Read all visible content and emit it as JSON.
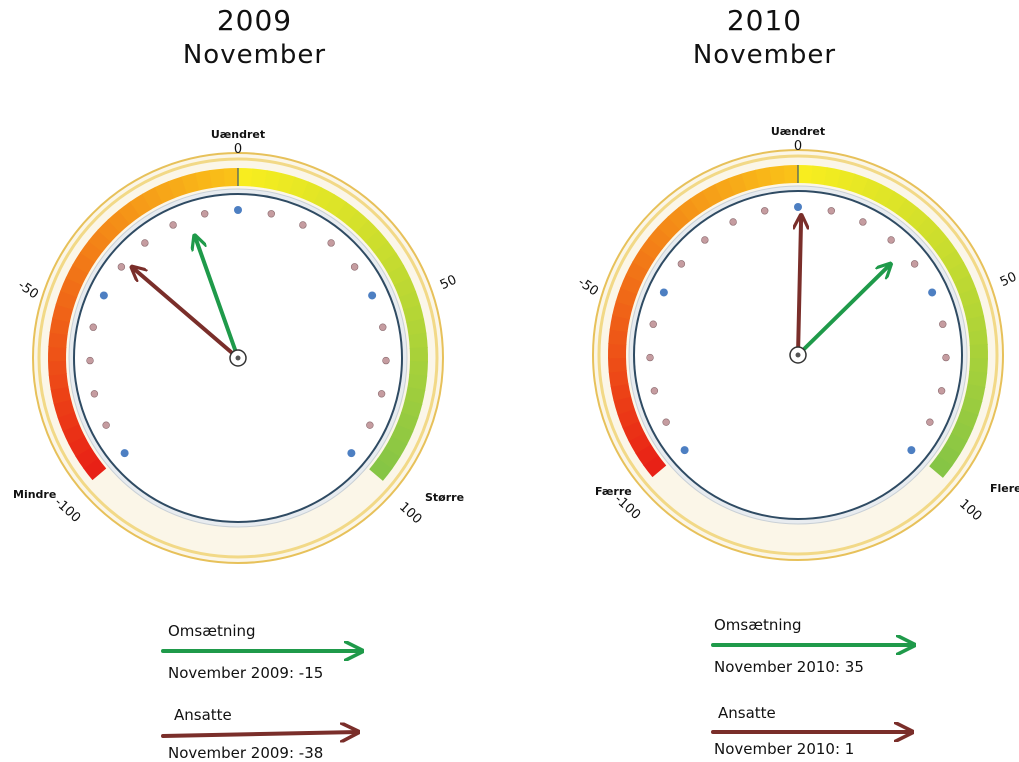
{
  "colors": {
    "omsaetning": "#1f9a4a",
    "ansatte": "#7a2e2a",
    "pin": "#c59ca0",
    "pin_blue": "#4d7fc2"
  },
  "chart_data": [
    {
      "type": "gauge",
      "title": "2009",
      "subtitle": "November",
      "scale": {
        "min": -100,
        "max": 100,
        "ticks": [
          -100,
          -50,
          0,
          50,
          100
        ]
      },
      "label_center": "Uændret",
      "label_left": "Mindre",
      "label_right": "Større",
      "series": [
        {
          "name": "Omsætning",
          "value": -15,
          "color": "#1f9a4a",
          "legend_line": "November 2009:  -15"
        },
        {
          "name": "Ansatte",
          "value": -38,
          "color": "#7a2e2a",
          "legend_line": "November 2009: -38"
        }
      ]
    },
    {
      "type": "gauge",
      "title": "2010",
      "subtitle": "November",
      "scale": {
        "min": -100,
        "max": 100,
        "ticks": [
          -100,
          -50,
          0,
          50,
          100
        ]
      },
      "label_center": "Uændret",
      "label_left": "Færre",
      "label_right": "Flere",
      "series": [
        {
          "name": "Omsætning",
          "value": 35,
          "color": "#1f9a4a",
          "legend_line": "November 2010:  35"
        },
        {
          "name": "Ansatte",
          "value": 1,
          "color": "#7a2e2a",
          "legend_line": "November 2010: 1"
        }
      ]
    }
  ]
}
